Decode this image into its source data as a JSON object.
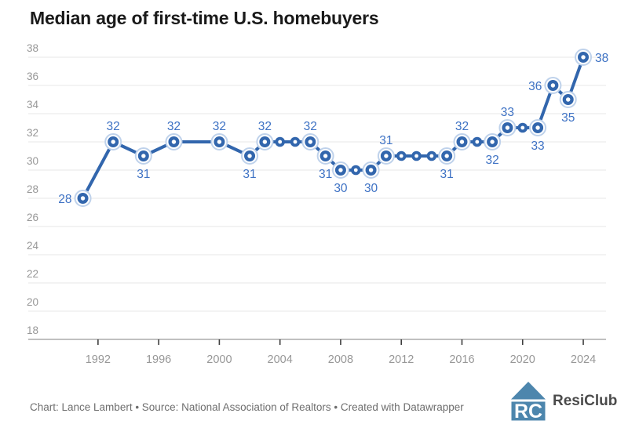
{
  "title": "Median age of first-time U.S. homebuyers",
  "footer": {
    "credit": "Chart: Lance Lambert • Source: National Association of Realtors • Created with Datawrapper"
  },
  "logo": {
    "text": "ResiClub",
    "monogram": "RC",
    "icon_color": "#4d86ad",
    "text_color": "#4b4b4b"
  },
  "chart_data": {
    "type": "line",
    "title": "Median age of first-time U.S. homebuyers",
    "xlabel": "",
    "ylabel": "",
    "legend": "none",
    "grid": "horizontal",
    "x_ticks": [
      1992,
      1996,
      2000,
      2004,
      2008,
      2012,
      2016,
      2020,
      2024
    ],
    "y_ticks": [
      18,
      20,
      22,
      24,
      26,
      28,
      30,
      32,
      34,
      36,
      38
    ],
    "x_range": [
      1987.4,
      2025.5
    ],
    "y_range": [
      18,
      38
    ],
    "colors": {
      "line": "#3266ad",
      "label": "#3e72c4",
      "halo": "#bfd2eb",
      "axis_text": "#979797",
      "grid": "#e7e7e7",
      "axis_line": "#ababab",
      "tick": "#3d3d3d"
    },
    "series": [
      {
        "name": "Median age of first-time U.S. homebuyers",
        "points": [
          {
            "year": 1991,
            "value": 28,
            "label": "28",
            "label_pos": "left"
          },
          {
            "year": 1993,
            "value": 32,
            "label": "32",
            "label_pos": "above"
          },
          {
            "year": 1995,
            "value": 31,
            "label": "31",
            "label_pos": "below"
          },
          {
            "year": 1997,
            "value": 32,
            "label": "32",
            "label_pos": "above"
          },
          {
            "year": 2000,
            "value": 32,
            "label": "32",
            "label_pos": "above"
          },
          {
            "year": 2002,
            "value": 31,
            "label": "31",
            "label_pos": "below"
          },
          {
            "year": 2003,
            "value": 32,
            "label": "32",
            "label_pos": "above"
          },
          {
            "year": 2004,
            "value": 32,
            "label": null,
            "label_pos": null
          },
          {
            "year": 2005,
            "value": 32,
            "label": null,
            "label_pos": null
          },
          {
            "year": 2006,
            "value": 32,
            "label": "32",
            "label_pos": "above"
          },
          {
            "year": 2007,
            "value": 31,
            "label": "31",
            "label_pos": "below"
          },
          {
            "year": 2008,
            "value": 30,
            "label": "30",
            "label_pos": "below"
          },
          {
            "year": 2009,
            "value": 30,
            "label": null,
            "label_pos": null
          },
          {
            "year": 2010,
            "value": 30,
            "label": "30",
            "label_pos": "below"
          },
          {
            "year": 2011,
            "value": 31,
            "label": "31",
            "label_pos": "above"
          },
          {
            "year": 2012,
            "value": 31,
            "label": null,
            "label_pos": null
          },
          {
            "year": 2013,
            "value": 31,
            "label": null,
            "label_pos": null
          },
          {
            "year": 2014,
            "value": 31,
            "label": null,
            "label_pos": null
          },
          {
            "year": 2015,
            "value": 31,
            "label": "31",
            "label_pos": "below"
          },
          {
            "year": 2016,
            "value": 32,
            "label": "32",
            "label_pos": "above"
          },
          {
            "year": 2017,
            "value": 32,
            "label": null,
            "label_pos": null
          },
          {
            "year": 2018,
            "value": 32,
            "label": "32",
            "label_pos": "below"
          },
          {
            "year": 2019,
            "value": 33,
            "label": "33",
            "label_pos": "above"
          },
          {
            "year": 2020,
            "value": 33,
            "label": null,
            "label_pos": null
          },
          {
            "year": 2021,
            "value": 33,
            "label": "33",
            "label_pos": "below"
          },
          {
            "year": 2022,
            "value": 36,
            "label": "36",
            "label_pos": "left"
          },
          {
            "year": 2023,
            "value": 35,
            "label": "35",
            "label_pos": "below"
          },
          {
            "year": 2024,
            "value": 38,
            "label": "38",
            "label_pos": "right"
          }
        ]
      }
    ]
  }
}
